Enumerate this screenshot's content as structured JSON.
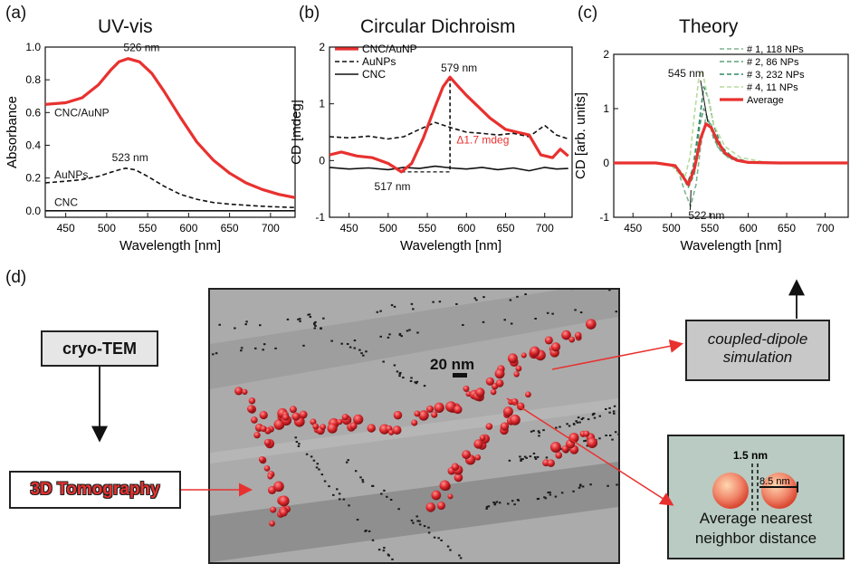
{
  "panels": {
    "a": {
      "letter": "(a)",
      "title": "UV-vis"
    },
    "b": {
      "letter": "(b)",
      "title": "Circular Dichroism"
    },
    "c": {
      "letter": "(c)",
      "title": "Theory"
    },
    "d": {
      "letter": "(d)"
    }
  },
  "chart_data": [
    {
      "id": "a",
      "type": "line",
      "title": "UV-vis",
      "xlabel": "Wavelength [nm]",
      "ylabel": "Absorbance",
      "xlim": [
        425,
        730
      ],
      "ylim": [
        -0.04,
        1.0
      ],
      "xticks": [
        450,
        500,
        550,
        600,
        650,
        700
      ],
      "yticks": [
        0.0,
        0.2,
        0.4,
        0.6,
        0.8,
        1.0
      ],
      "grid": false,
      "series": [
        {
          "name": "CNC/AuNP",
          "color": "#e8312f",
          "style": "solid",
          "x": [
            425,
            450,
            470,
            490,
            505,
            515,
            526,
            540,
            555,
            570,
            590,
            610,
            630,
            650,
            670,
            690,
            710,
            730
          ],
          "y": [
            0.65,
            0.66,
            0.69,
            0.77,
            0.86,
            0.91,
            0.93,
            0.91,
            0.84,
            0.73,
            0.57,
            0.42,
            0.31,
            0.23,
            0.17,
            0.13,
            0.1,
            0.08
          ]
        },
        {
          "name": "AuNPs",
          "color": "#111111",
          "style": "dashed",
          "x": [
            425,
            450,
            470,
            490,
            505,
            515,
            523,
            535,
            550,
            570,
            590,
            610,
            630,
            650,
            680,
            700,
            730
          ],
          "y": [
            0.17,
            0.18,
            0.19,
            0.21,
            0.235,
            0.25,
            0.26,
            0.25,
            0.21,
            0.15,
            0.1,
            0.07,
            0.05,
            0.04,
            0.03,
            0.025,
            0.02
          ]
        },
        {
          "name": "CNC",
          "color": "#111111",
          "style": "solid",
          "x": [
            425,
            730
          ],
          "y": [
            0.0,
            0.0
          ]
        }
      ],
      "annotations": [
        {
          "text": "526 nm",
          "x": 526,
          "y": 0.93
        },
        {
          "text": "523 nm",
          "x": 523,
          "y": 0.26
        },
        {
          "text": "CNC/AuNP",
          "x": 447,
          "y": 0.6
        },
        {
          "text": "AuNPs",
          "x": 447,
          "y": 0.22
        },
        {
          "text": "CNC",
          "x": 447,
          "y": 0.05
        }
      ]
    },
    {
      "id": "b",
      "type": "line",
      "title": "Circular Dichroism",
      "xlabel": "Wavelength [nm]",
      "ylabel": "CD [mdeg]",
      "xlim": [
        425,
        735
      ],
      "ylim": [
        -1,
        2
      ],
      "xticks": [
        450,
        500,
        550,
        600,
        650,
        700
      ],
      "yticks": [
        -1,
        0,
        1,
        2
      ],
      "grid": false,
      "legend": "top-left",
      "series": [
        {
          "name": "CNC/AuNP",
          "color": "#e8312f",
          "style": "solid",
          "x": [
            425,
            440,
            460,
            480,
            500,
            517,
            530,
            545,
            560,
            570,
            579,
            590,
            600,
            615,
            630,
            650,
            665,
            680,
            695,
            710,
            720,
            730
          ],
          "y": [
            0.1,
            0.15,
            0.08,
            0.05,
            -0.05,
            -0.2,
            -0.05,
            0.4,
            0.95,
            1.3,
            1.47,
            1.3,
            1.15,
            0.95,
            0.75,
            0.55,
            0.5,
            0.45,
            0.1,
            0.05,
            0.2,
            0.08
          ]
        },
        {
          "name": "AuNPs",
          "color": "#111111",
          "style": "dashed",
          "x": [
            425,
            450,
            475,
            500,
            520,
            540,
            560,
            580,
            600,
            620,
            640,
            660,
            680,
            700,
            715,
            730
          ],
          "y": [
            0.42,
            0.4,
            0.43,
            0.38,
            0.42,
            0.55,
            0.67,
            0.58,
            0.5,
            0.48,
            0.45,
            0.48,
            0.42,
            0.62,
            0.45,
            0.38
          ]
        },
        {
          "name": "CNC",
          "color": "#111111",
          "style": "solid",
          "x": [
            425,
            450,
            475,
            500,
            520,
            540,
            560,
            580,
            600,
            620,
            640,
            660,
            680,
            700,
            715,
            730
          ],
          "y": [
            -0.12,
            -0.15,
            -0.13,
            -0.16,
            -0.12,
            -0.14,
            -0.1,
            -0.13,
            -0.15,
            -0.12,
            -0.16,
            -0.13,
            -0.18,
            -0.12,
            -0.15,
            -0.14
          ]
        }
      ],
      "annotations": [
        {
          "text": "579 nm",
          "x": 579,
          "y": 1.47
        },
        {
          "text": "517 nm",
          "x": 517,
          "y": -0.2
        },
        {
          "text": "Δ1.7 mdeg",
          "x": 585,
          "y": 0.3,
          "color": "#e8312f"
        }
      ]
    },
    {
      "id": "c",
      "type": "line",
      "title": "Theory",
      "xlabel": "Wavelength [nm]",
      "ylabel": "CD [arb. units]",
      "xlim": [
        425,
        730
      ],
      "ylim": [
        -1,
        2
      ],
      "xticks": [
        450,
        500,
        550,
        600,
        650,
        700
      ],
      "yticks": [
        -1,
        0,
        1,
        2
      ],
      "grid": false,
      "legend": "top-right",
      "series": [
        {
          "name": "# 1, 118 NPs",
          "color": "#7fb48f",
          "style": "dashed",
          "x": [
            425,
            480,
            500,
            510,
            518,
            525,
            532,
            538,
            545,
            552,
            560,
            575,
            600,
            640,
            730
          ],
          "y": [
            0,
            0,
            -0.03,
            -0.2,
            -0.55,
            -0.8,
            -0.4,
            0.3,
            0.85,
            0.7,
            0.3,
            0.08,
            0.01,
            0,
            0
          ]
        },
        {
          "name": "# 2, 86 NPs",
          "color": "#5fa078",
          "style": "dashed",
          "x": [
            425,
            480,
            505,
            515,
            522,
            530,
            537,
            542,
            548,
            555,
            565,
            580,
            600,
            640,
            730
          ],
          "y": [
            0,
            0,
            -0.05,
            -0.2,
            -0.45,
            -0.2,
            0.7,
            1.0,
            0.8,
            0.45,
            0.2,
            0.06,
            0.01,
            0,
            0
          ]
        },
        {
          "name": "# 3, 232 NPs",
          "color": "#2e8b62",
          "style": "dashed",
          "x": [
            425,
            480,
            500,
            512,
            520,
            528,
            535,
            542,
            548,
            555,
            565,
            580,
            600,
            640,
            730
          ],
          "y": [
            0,
            0,
            -0.05,
            -0.2,
            -0.4,
            -0.1,
            0.6,
            1.4,
            1.2,
            0.7,
            0.3,
            0.1,
            0.02,
            0,
            0
          ]
        },
        {
          "name": "# 4, 11 NPs",
          "color": "#b7dc9a",
          "style": "dashed",
          "x": [
            425,
            480,
            500,
            510,
            517,
            524,
            530,
            536,
            540,
            546,
            555,
            570,
            590,
            620,
            660,
            730
          ],
          "y": [
            0,
            0,
            -0.05,
            -0.2,
            -0.3,
            0.1,
            0.9,
            1.6,
            1.7,
            1.3,
            0.7,
            0.3,
            0.1,
            0.02,
            0,
            0
          ]
        },
        {
          "name": "Average",
          "color": "#e8312f",
          "style": "solid",
          "x": [
            425,
            480,
            505,
            515,
            522,
            530,
            538,
            545,
            552,
            560,
            570,
            585,
            600,
            640,
            730
          ],
          "y": [
            0,
            0,
            -0.05,
            -0.25,
            -0.4,
            -0.1,
            0.45,
            0.72,
            0.65,
            0.4,
            0.18,
            0.05,
            0.01,
            0,
            0
          ]
        }
      ],
      "annotations": [
        {
          "text": "545 nm",
          "x": 545,
          "y": 0.72
        },
        {
          "text": "522 nm",
          "x": 522,
          "y": -0.4
        }
      ]
    }
  ],
  "flow": {
    "cryo_tem": "cryo-TEM",
    "tomography": "3D Tomography",
    "coupled_dipole_line1": "coupled-dipole",
    "coupled_dipole_line2": "simulation",
    "scale_bar": "20 nm",
    "gap_label": "1.5 nm",
    "radius_label": "8.5 nm",
    "nn_line1": "Average nearest",
    "nn_line2": "neighbor distance"
  },
  "colors": {
    "accent": "#e8312f",
    "box_gray": "#c8c8c8",
    "nn_box": "#b9cbc2"
  }
}
